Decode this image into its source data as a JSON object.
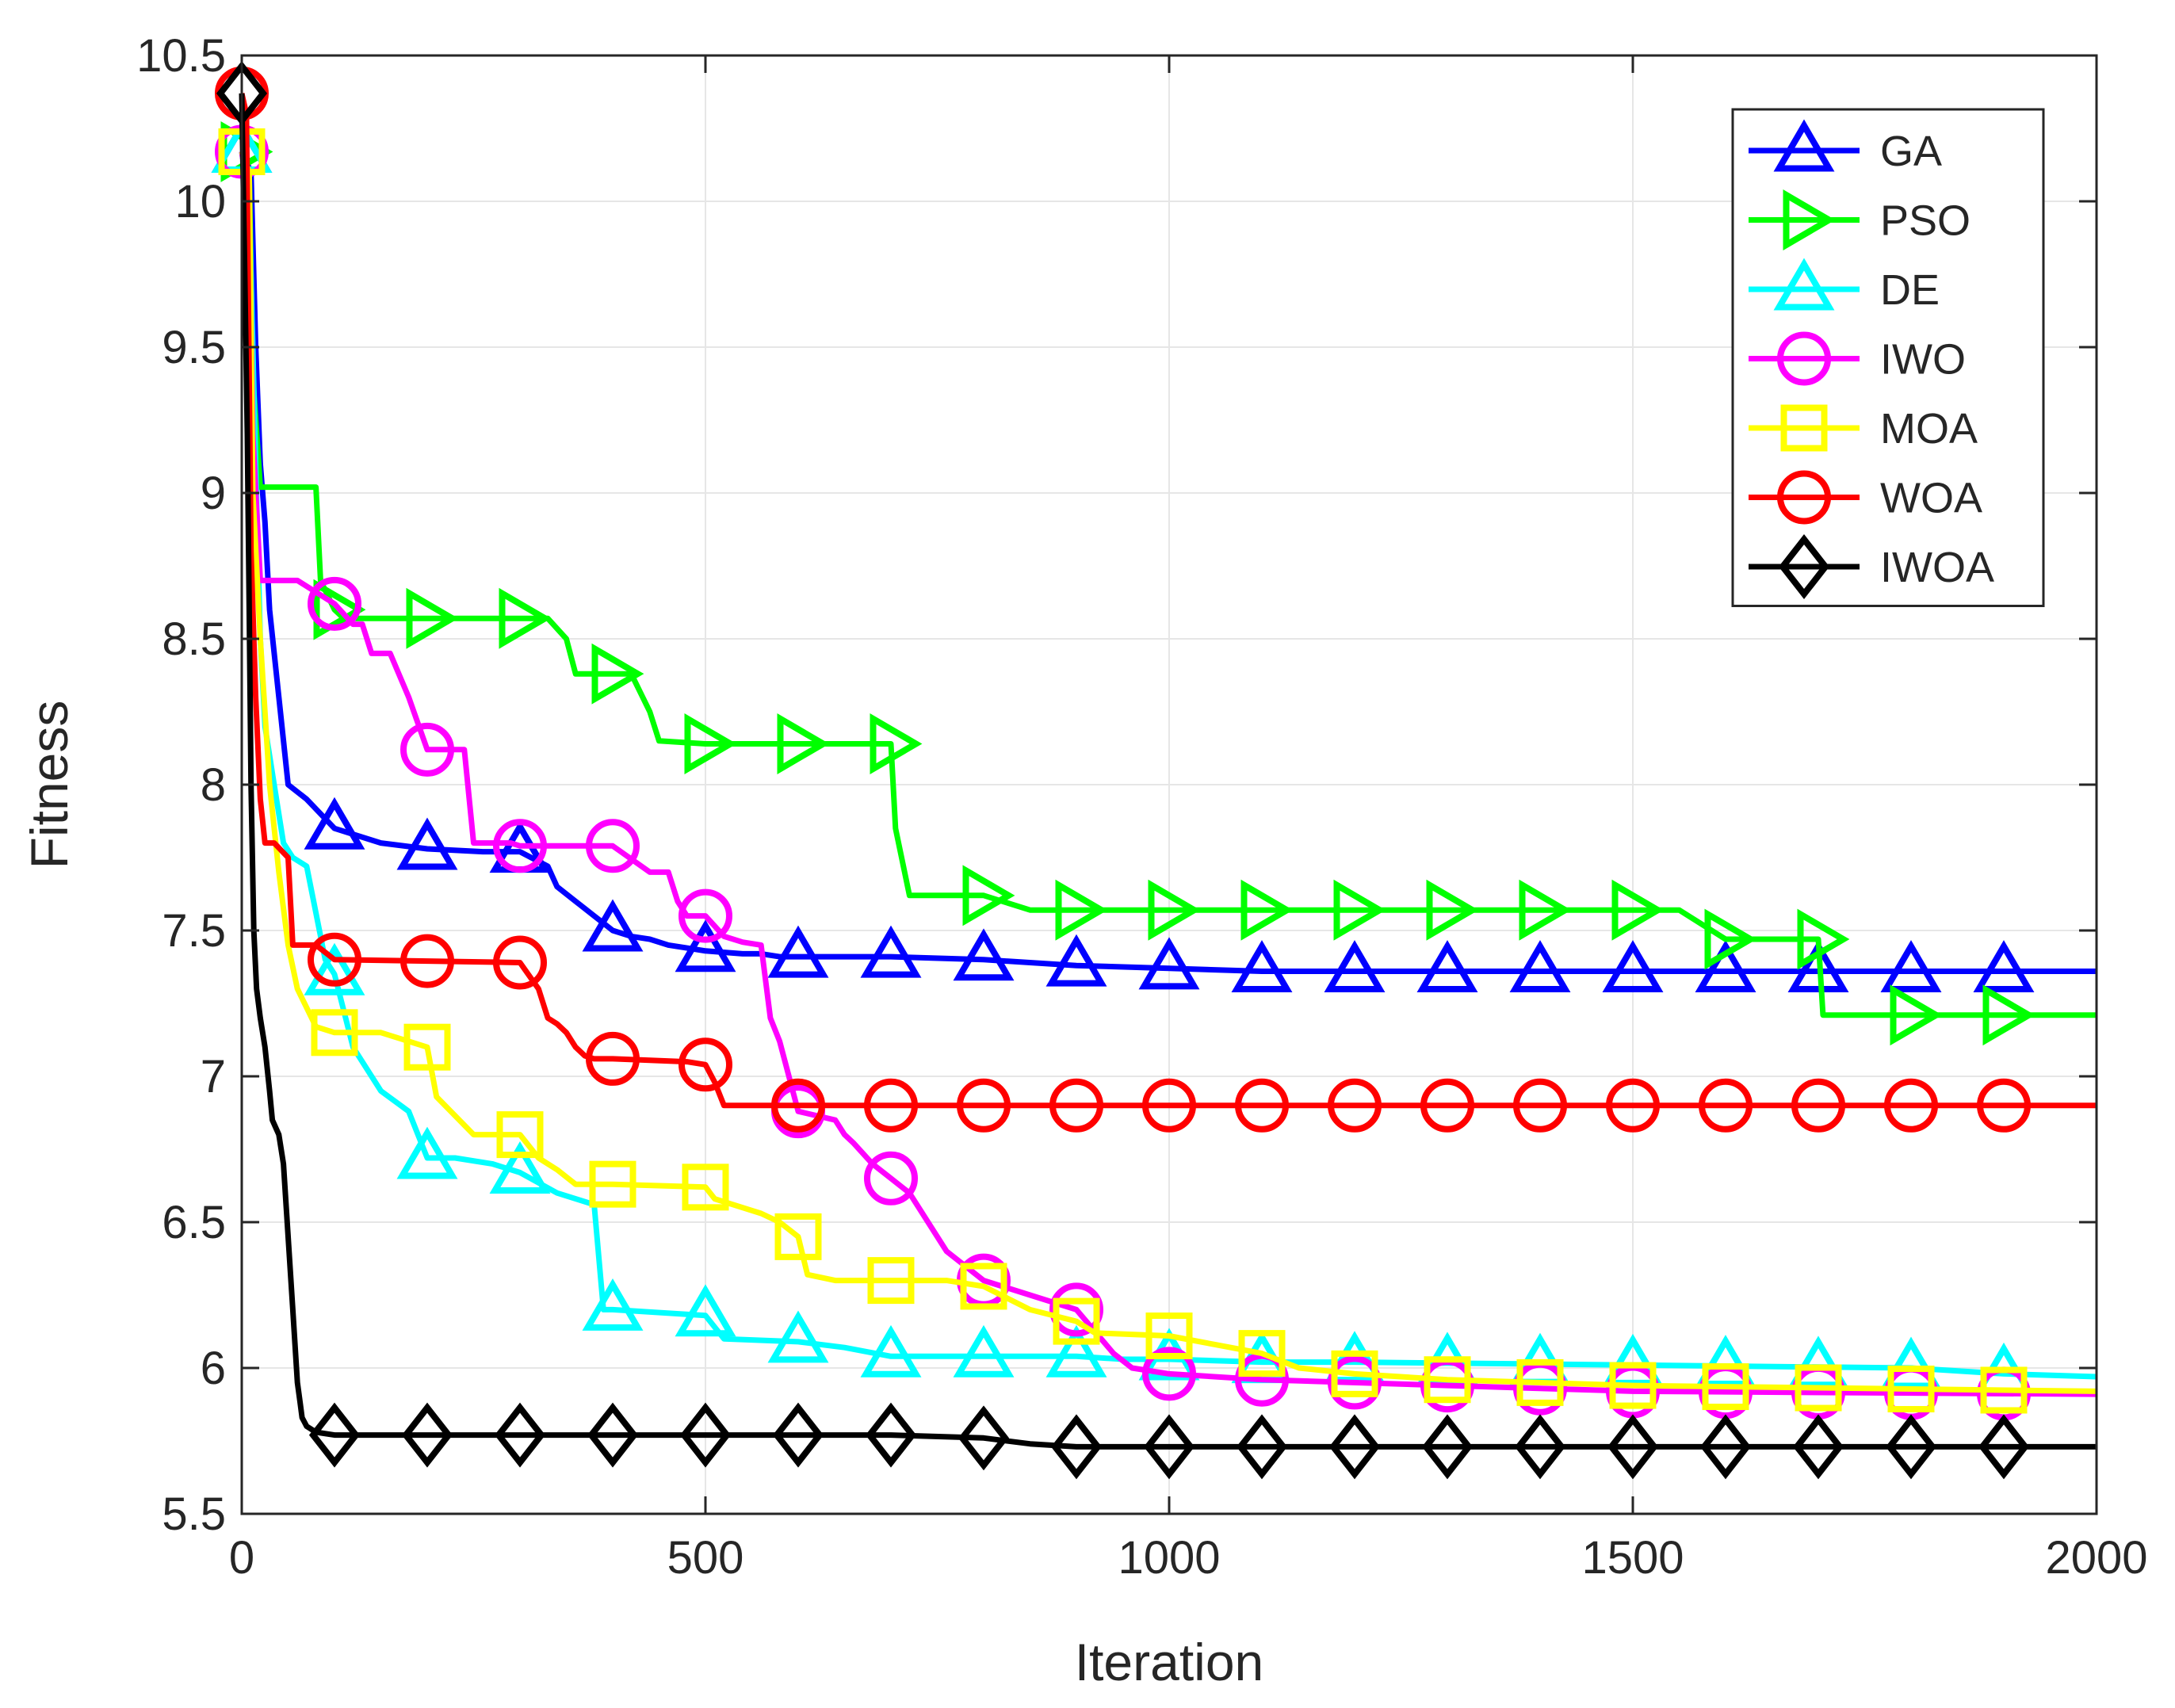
{
  "chart_data": {
    "type": "line",
    "title": "",
    "xlabel": "Iteration",
    "ylabel": "Fitness",
    "xlim": [
      0,
      2000
    ],
    "ylim": [
      5.5,
      10.5
    ],
    "xticks": [
      0,
      500,
      1000,
      1500,
      2000
    ],
    "yticks": [
      5.5,
      6,
      6.5,
      7,
      7.5,
      8,
      8.5,
      9,
      9.5,
      10,
      10.5
    ],
    "xtick_labels": [
      "0",
      "500",
      "1000",
      "1500",
      "2000"
    ],
    "ytick_labels": [
      "5.5",
      "6",
      "6.5",
      "7",
      "7.5",
      "8",
      "8.5",
      "9",
      "9.5",
      "10",
      "10.5"
    ],
    "grid": true,
    "legend_position": "top-right",
    "series": [
      {
        "name": "GA",
        "color": "#0000ff",
        "marker": "triangle-up",
        "x": [
          0,
          10,
          15,
          20,
          25,
          30,
          40,
          50,
          70,
          100,
          150,
          200,
          260,
          300,
          330,
          340,
          360,
          380,
          400,
          420,
          440,
          460,
          480,
          500,
          540,
          560,
          580,
          600,
          700,
          800,
          900,
          1000,
          1100,
          2000
        ],
        "y": [
          10.17,
          10.1,
          9.5,
          9.1,
          8.9,
          8.6,
          8.3,
          8.0,
          7.95,
          7.85,
          7.8,
          7.78,
          7.77,
          7.77,
          7.72,
          7.65,
          7.6,
          7.55,
          7.5,
          7.48,
          7.47,
          7.45,
          7.44,
          7.43,
          7.42,
          7.42,
          7.41,
          7.41,
          7.41,
          7.4,
          7.38,
          7.37,
          7.36,
          7.36
        ],
        "marker_x": [
          0,
          100,
          200,
          300,
          400,
          500,
          600,
          700,
          800,
          900,
          1000,
          1100,
          1200,
          1300,
          1400,
          1500,
          1600,
          1700,
          1800,
          1900
        ]
      },
      {
        "name": "PSO",
        "color": "#00ff00",
        "marker": "triangle-right",
        "x": [
          0,
          8,
          12,
          20,
          80,
          85,
          100,
          110,
          120,
          330,
          350,
          360,
          420,
          440,
          450,
          500,
          700,
          705,
          720,
          800,
          850,
          1550,
          1600,
          1700,
          1705,
          2000
        ],
        "y": [
          10.17,
          10.1,
          9.4,
          9.02,
          9.02,
          8.7,
          8.6,
          8.57,
          8.57,
          8.57,
          8.5,
          8.38,
          8.38,
          8.25,
          8.15,
          8.14,
          8.14,
          7.85,
          7.62,
          7.62,
          7.57,
          7.57,
          7.47,
          7.47,
          7.21,
          7.21
        ],
        "marker_x": [
          0,
          100,
          200,
          300,
          400,
          500,
          600,
          700,
          800,
          900,
          1000,
          1100,
          1200,
          1300,
          1400,
          1500,
          1600,
          1700,
          1800,
          1900
        ]
      },
      {
        "name": "DE",
        "color": "#00ffff",
        "marker": "triangle-up",
        "x": [
          0,
          8,
          15,
          20,
          25,
          35,
          45,
          55,
          70,
          90,
          100,
          120,
          150,
          180,
          200,
          230,
          270,
          300,
          340,
          380,
          390,
          400,
          500,
          520,
          600,
          650,
          700,
          800,
          850,
          900,
          950,
          1000,
          1100,
          1200,
          1500,
          1800,
          1900,
          2000
        ],
        "y": [
          10.17,
          10.0,
          9.1,
          8.5,
          8.2,
          8.0,
          7.8,
          7.75,
          7.72,
          7.4,
          7.35,
          7.1,
          6.95,
          6.88,
          6.72,
          6.72,
          6.7,
          6.67,
          6.6,
          6.56,
          6.2,
          6.2,
          6.18,
          6.1,
          6.09,
          6.07,
          6.04,
          6.04,
          6.04,
          6.04,
          6.03,
          6.03,
          6.02,
          6.02,
          6.01,
          6.0,
          5.98,
          5.97
        ],
        "marker_x": [
          0,
          100,
          200,
          300,
          400,
          500,
          600,
          700,
          800,
          900,
          1000,
          1100,
          1200,
          1300,
          1400,
          1500,
          1600,
          1700,
          1800,
          1900
        ]
      },
      {
        "name": "IWO",
        "color": "#ff00ff",
        "marker": "circle",
        "x": [
          0,
          8,
          12,
          20,
          60,
          100,
          120,
          130,
          140,
          160,
          180,
          200,
          240,
          250,
          290,
          300,
          340,
          400,
          440,
          460,
          470,
          480,
          500,
          520,
          540,
          560,
          570,
          580,
          600,
          640,
          650,
          660,
          680,
          700,
          720,
          740,
          760,
          800,
          850,
          900,
          940,
          960,
          1000,
          1100,
          1300,
          1500,
          2000
        ],
        "y": [
          10.17,
          10.0,
          9.2,
          8.7,
          8.7,
          8.62,
          8.55,
          8.55,
          8.45,
          8.45,
          8.3,
          8.12,
          8.12,
          7.8,
          7.8,
          7.79,
          7.79,
          7.79,
          7.7,
          7.7,
          7.6,
          7.55,
          7.55,
          7.48,
          7.46,
          7.45,
          7.2,
          7.12,
          6.88,
          6.85,
          6.8,
          6.77,
          6.7,
          6.65,
          6.6,
          6.5,
          6.4,
          6.3,
          6.25,
          6.2,
          6.05,
          6.0,
          5.98,
          5.96,
          5.94,
          5.92,
          5.91
        ],
        "marker_x": [
          0,
          100,
          200,
          300,
          400,
          500,
          600,
          700,
          800,
          900,
          1000,
          1100,
          1200,
          1300,
          1400,
          1500,
          1600,
          1700,
          1800,
          1900
        ]
      },
      {
        "name": "MOA",
        "color": "#ffff00",
        "marker": "square",
        "x": [
          0,
          8,
          12,
          20,
          30,
          40,
          50,
          60,
          80,
          100,
          150,
          200,
          210,
          250,
          300,
          320,
          340,
          360,
          390,
          400,
          500,
          510,
          560,
          580,
          600,
          610,
          640,
          700,
          760,
          800,
          850,
          900,
          920,
          1000,
          1050,
          1100,
          1140,
          1200,
          1300,
          1500,
          2000
        ],
        "y": [
          10.17,
          10.1,
          9.0,
          8.5,
          8.0,
          7.7,
          7.45,
          7.3,
          7.17,
          7.15,
          7.15,
          7.1,
          6.93,
          6.8,
          6.8,
          6.72,
          6.68,
          6.63,
          6.63,
          6.63,
          6.62,
          6.58,
          6.53,
          6.5,
          6.45,
          6.32,
          6.3,
          6.3,
          6.3,
          6.28,
          6.2,
          6.16,
          6.12,
          6.11,
          6.08,
          6.05,
          6.0,
          5.98,
          5.96,
          5.94,
          5.92
        ],
        "marker_x": [
          0,
          100,
          200,
          300,
          400,
          500,
          600,
          700,
          800,
          900,
          1000,
          1100,
          1200,
          1300,
          1400,
          1500,
          1600,
          1700,
          1800,
          1900
        ]
      },
      {
        "name": "WOA",
        "color": "#ff0000",
        "marker": "circle",
        "x": [
          0,
          5,
          10,
          15,
          20,
          25,
          35,
          50,
          55,
          80,
          100,
          300,
          320,
          330,
          340,
          350,
          360,
          370,
          380,
          400,
          480,
          500,
          510,
          520,
          560,
          600,
          2000
        ],
        "y": [
          10.37,
          10.3,
          8.8,
          8.3,
          7.95,
          7.8,
          7.8,
          7.75,
          7.45,
          7.45,
          7.4,
          7.39,
          7.3,
          7.2,
          7.18,
          7.15,
          7.1,
          7.07,
          7.06,
          7.06,
          7.05,
          7.04,
          6.98,
          6.9,
          6.9,
          6.9,
          6.9
        ],
        "marker_x": [
          0,
          100,
          200,
          300,
          400,
          500,
          600,
          700,
          800,
          900,
          1000,
          1100,
          1200,
          1300,
          1400,
          1500,
          1600,
          1700,
          1800,
          1900
        ]
      },
      {
        "name": "IWOA",
        "color": "#000000",
        "marker": "diamond",
        "x": [
          0,
          3,
          6,
          8,
          10,
          13,
          16,
          20,
          25,
          30,
          33,
          40,
          45,
          50,
          55,
          60,
          63,
          65,
          70,
          80,
          100,
          500,
          700,
          800,
          850,
          900,
          2000
        ],
        "y": [
          10.37,
          9.8,
          9.2,
          8.6,
          8.0,
          7.5,
          7.3,
          7.2,
          7.1,
          6.95,
          6.85,
          6.8,
          6.7,
          6.45,
          6.2,
          5.95,
          5.88,
          5.83,
          5.8,
          5.78,
          5.77,
          5.77,
          5.77,
          5.76,
          5.74,
          5.73,
          5.73
        ],
        "marker_x": [
          0,
          100,
          200,
          300,
          400,
          500,
          600,
          700,
          800,
          900,
          1000,
          1100,
          1200,
          1300,
          1400,
          1500,
          1600,
          1700,
          1800,
          1900
        ]
      }
    ]
  }
}
